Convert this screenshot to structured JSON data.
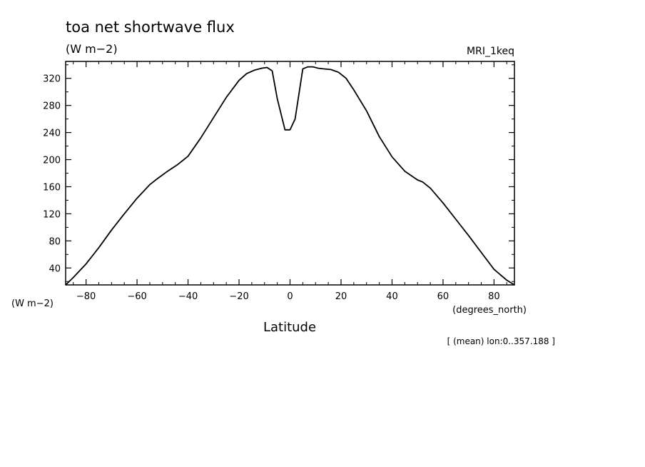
{
  "chart_data": {
    "type": "line",
    "title": "toa net shortwave flux",
    "units_label": "(W m−2)",
    "run_label": "MRI_1keq",
    "ylabel": "(W m−2)",
    "x_units_label": "(degrees_north)",
    "xlabel": "Latitude",
    "footnote": "[ (mean) lon:0..357.188 ]",
    "xlim": [
      -88,
      88
    ],
    "ylim": [
      15,
      345
    ],
    "x_ticks": [
      -80,
      -60,
      -40,
      -20,
      0,
      20,
      40,
      60,
      80
    ],
    "x_tick_labels": [
      "−80",
      "−60",
      "−40",
      "−20",
      "0",
      "20",
      "40",
      "60",
      "80"
    ],
    "y_ticks": [
      40,
      80,
      120,
      160,
      200,
      240,
      280,
      320
    ],
    "y_tick_labels": [
      "40",
      "80",
      "120",
      "160",
      "200",
      "240",
      "280",
      "320"
    ],
    "grid": false,
    "line_color": "#000000",
    "series": [
      {
        "x": [
          -88,
          -85,
          -80,
          -75,
          -70,
          -65,
          -60,
          -55,
          -52,
          -48,
          -44,
          -40,
          -35,
          -30,
          -25,
          -20,
          -17,
          -14,
          -11,
          -9,
          -7,
          -5,
          -2,
          0,
          2,
          5,
          7,
          9,
          11,
          13,
          16,
          19,
          22,
          25,
          30,
          35,
          40,
          45,
          50,
          52,
          55,
          60,
          65,
          70,
          75,
          80,
          85,
          88
        ],
        "y": [
          14,
          26,
          46,
          70,
          96,
          120,
          143,
          163,
          172,
          183,
          193,
          205,
          232,
          262,
          292,
          317,
          327,
          332,
          335,
          336,
          331,
          290,
          244,
          244,
          260,
          334,
          337,
          337,
          335,
          334,
          333,
          329,
          320,
          303,
          272,
          234,
          204,
          183,
          170,
          167,
          158,
          136,
          112,
          88,
          63,
          38,
          22,
          14
        ]
      }
    ]
  }
}
